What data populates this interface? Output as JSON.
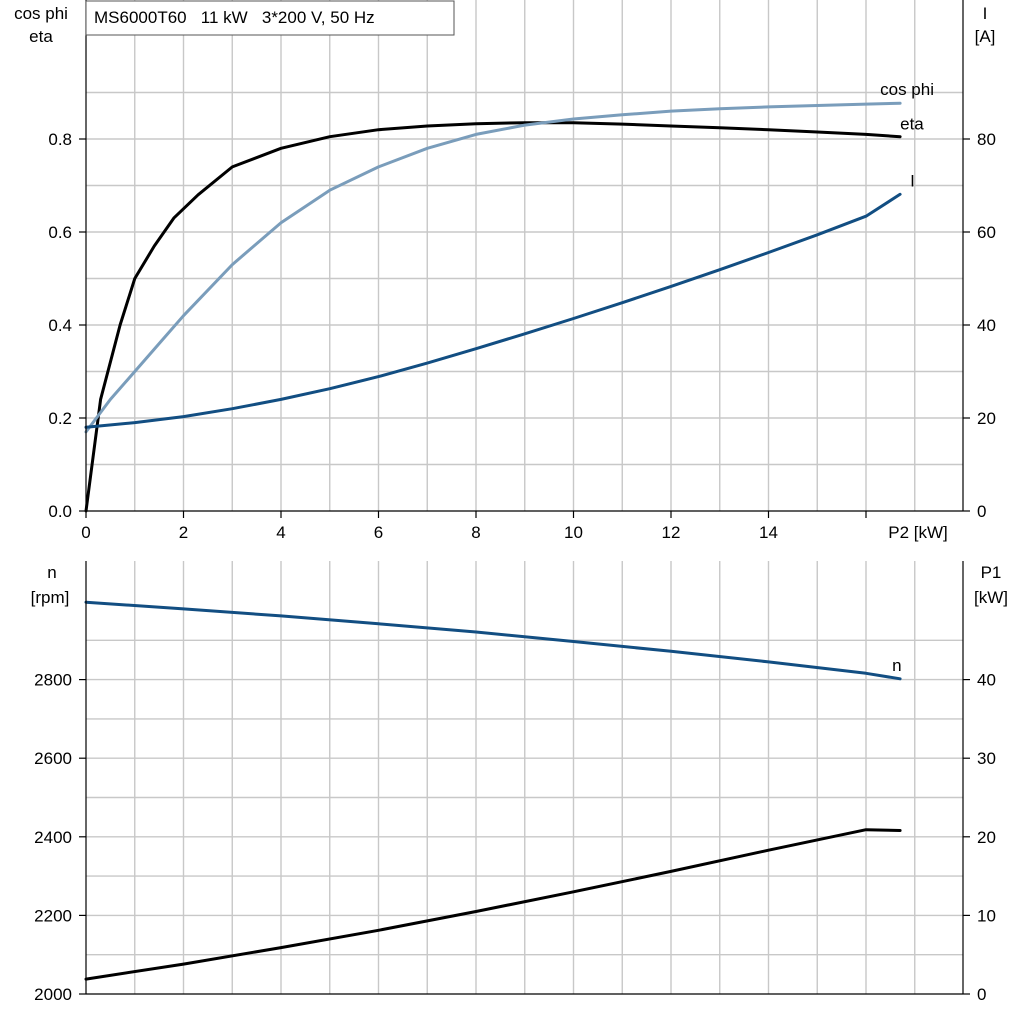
{
  "chart_data": [
    {
      "type": "line",
      "title": "MS6000T60   11 kW   3*200 V, 50 Hz",
      "xlabel": "P2 [kW]",
      "xlim": [
        0,
        18
      ],
      "x_ticks": [
        0,
        2,
        4,
        6,
        8,
        10,
        12,
        14
      ],
      "ylabel_left_lines": [
        "cos phi",
        "eta"
      ],
      "ylim_left": [
        0,
        0.92
      ],
      "y_ticks_left": [
        "0.0",
        "0.2",
        "0.4",
        "0.6",
        "0.8"
      ],
      "ylabel_right_lines": [
        "I",
        "[A]"
      ],
      "ylim_right": [
        0,
        92
      ],
      "y_ticks_right": [
        "0",
        "20",
        "40",
        "60",
        "80"
      ],
      "grid": true,
      "series": [
        {
          "name": "eta",
          "axis": "left",
          "color": "#000000",
          "x": [
            0,
            0.3,
            0.7,
            1.0,
            1.4,
            1.8,
            2.3,
            3.0,
            4.0,
            5.0,
            6.0,
            7.0,
            8.0,
            9.0,
            10.0,
            11.0,
            12.0,
            13.0,
            14.0,
            15.0,
            16.0,
            16.7
          ],
          "y": [
            0.0,
            0.24,
            0.4,
            0.5,
            0.57,
            0.63,
            0.68,
            0.74,
            0.78,
            0.805,
            0.82,
            0.828,
            0.833,
            0.835,
            0.835,
            0.832,
            0.828,
            0.824,
            0.82,
            0.815,
            0.81,
            0.805
          ]
        },
        {
          "name": "cos phi",
          "axis": "left",
          "color": "#7a9dbb",
          "x": [
            0,
            0.5,
            1.0,
            1.5,
            2.0,
            3.0,
            4.0,
            5.0,
            6.0,
            7.0,
            8.0,
            9.0,
            10.0,
            11.0,
            12.0,
            13.0,
            14.0,
            15.0,
            16.0,
            16.7
          ],
          "y": [
            0.17,
            0.24,
            0.3,
            0.36,
            0.42,
            0.53,
            0.62,
            0.69,
            0.74,
            0.78,
            0.81,
            0.83,
            0.843,
            0.852,
            0.86,
            0.865,
            0.869,
            0.872,
            0.875,
            0.877
          ]
        },
        {
          "name": "I",
          "axis": "right",
          "color": "#124e82",
          "x": [
            0,
            1.0,
            2.0,
            3.0,
            4.0,
            5.0,
            6.0,
            7.0,
            8.0,
            9.0,
            10.0,
            11.0,
            12.0,
            13.0,
            14.0,
            15.0,
            16.0,
            16.7
          ],
          "y": [
            18.0,
            19.0,
            20.3,
            22.0,
            24.0,
            26.3,
            28.9,
            31.8,
            34.9,
            38.1,
            41.4,
            44.8,
            48.3,
            51.9,
            55.6,
            59.4,
            63.4,
            68.1
          ]
        }
      ]
    },
    {
      "type": "line",
      "xlim": [
        0,
        18
      ],
      "ylabel_left_lines": [
        "n",
        "[rpm]"
      ],
      "ylim_left": [
        2000,
        3000
      ],
      "y_ticks_left": [
        "2000",
        "2200",
        "2400",
        "2600",
        "2800"
      ],
      "ylabel_right_lines": [
        "P1",
        "[kW]"
      ],
      "ylim_right": [
        0,
        50
      ],
      "y_ticks_right": [
        "0",
        "10",
        "20",
        "30",
        "40"
      ],
      "grid": true,
      "series": [
        {
          "name": "n",
          "axis": "left",
          "color": "#124e82",
          "x": [
            0,
            2,
            4,
            6,
            8,
            10,
            12,
            14,
            16,
            16.7
          ],
          "y": [
            2997,
            2980,
            2962,
            2942,
            2921,
            2897,
            2872,
            2845,
            2816,
            2802
          ]
        },
        {
          "name": "P1",
          "axis": "right",
          "color": "#000000",
          "x": [
            0,
            2,
            4,
            6,
            8,
            10,
            12,
            14,
            16,
            16.7
          ],
          "y": [
            1.9,
            3.8,
            5.9,
            8.1,
            10.5,
            13.0,
            15.6,
            18.3,
            20.9,
            20.8
          ]
        }
      ]
    }
  ]
}
